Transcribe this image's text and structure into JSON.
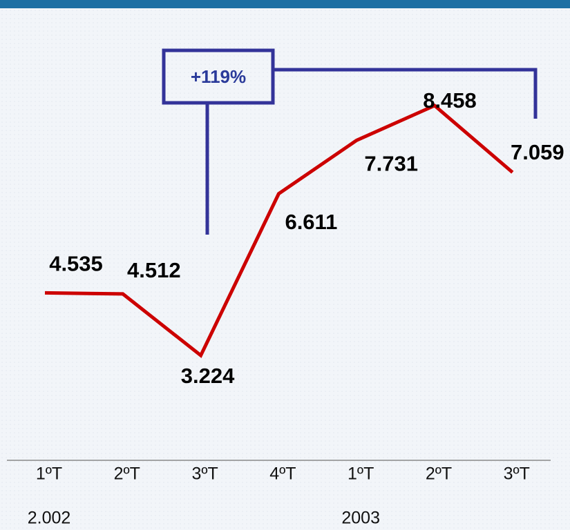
{
  "chart_data": {
    "type": "line",
    "categories": [
      "1ºT",
      "2ºT",
      "3ºT",
      "4ºT",
      "1ºT",
      "2ºT",
      "3ºT"
    ],
    "groups": [
      "2.002",
      "2003"
    ],
    "values": [
      4535,
      4512,
      3224,
      6611,
      7731,
      8458,
      7059
    ],
    "value_labels": [
      "4.535",
      "4.512",
      "3.224",
      "6.611",
      "7.731",
      "8.458",
      "7.059"
    ],
    "color": "#cc0000",
    "annotation": "+119%"
  }
}
